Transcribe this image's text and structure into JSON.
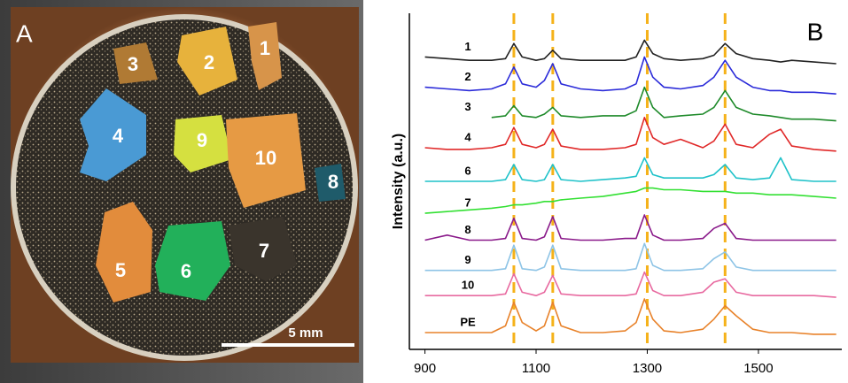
{
  "photo": {
    "panel_label": "A",
    "fragment_labels": [
      "1",
      "2",
      "3",
      "4",
      "9",
      "10",
      "8",
      "5",
      "6",
      "7"
    ],
    "scale_bar": "5 mm"
  },
  "chart_data": {
    "type": "line",
    "panel_label": "B",
    "y_label": "Intensity (a.u.)",
    "x": [
      900,
      940,
      980,
      1020,
      1045,
      1060,
      1075,
      1100,
      1115,
      1130,
      1145,
      1180,
      1220,
      1260,
      1280,
      1295,
      1310,
      1330,
      1360,
      1400,
      1420,
      1440,
      1460,
      1490,
      1520,
      1540,
      1560,
      1600,
      1640
    ],
    "xlim": [
      872,
      1650
    ],
    "ylim": [
      0,
      100
    ],
    "xticks": [
      900,
      1100,
      1300,
      1500
    ],
    "reference_lines": [
      1060,
      1130,
      1300,
      1440
    ],
    "reference_color": "#f5b21a",
    "series": [
      {
        "name": "1",
        "color": "#222222",
        "values": [
          87,
          86.5,
          86,
          86,
          86.5,
          91,
          87,
          86,
          86.5,
          89,
          86.5,
          86,
          86,
          86,
          87,
          92,
          88,
          86.5,
          86,
          86.5,
          87.5,
          91,
          88,
          86.5,
          86,
          85.5,
          86,
          85.5,
          85
        ]
      },
      {
        "name": "2",
        "color": "#2b2bd9",
        "values": [
          78,
          77.5,
          77,
          77.5,
          79,
          84,
          79,
          78,
          80,
          85,
          79,
          77.5,
          77,
          77.5,
          79,
          87,
          81,
          78,
          77.5,
          78.5,
          81,
          86,
          81,
          78,
          77,
          77,
          76.5,
          76.5,
          76
        ]
      },
      {
        "name": "3",
        "color": "#1e8a2a",
        "values": [
          null,
          null,
          null,
          69,
          69.5,
          72.5,
          69.5,
          69,
          70,
          72,
          69.5,
          69,
          69.5,
          69.5,
          71,
          78,
          72,
          69,
          69.5,
          70,
          72,
          77,
          72,
          70,
          69.5,
          69,
          68.5,
          68.5,
          68
        ]
      },
      {
        "name": "4",
        "color": "#e02828",
        "values": [
          60,
          59.5,
          59.5,
          60,
          61,
          66,
          61,
          60,
          61,
          65.5,
          60.5,
          59.5,
          59.5,
          60,
          61,
          69,
          63,
          61,
          62.5,
          60,
          62,
          67,
          61,
          60,
          64,
          65.5,
          60.5,
          59.5,
          59
        ]
      },
      {
        "name": "6",
        "color": "#1fc2c9",
        "values": [
          50,
          50,
          50,
          50,
          50.5,
          55,
          50.5,
          50,
          50.5,
          55,
          50.5,
          50,
          50.5,
          51,
          51.5,
          57,
          52,
          51,
          51,
          51,
          52,
          55,
          51,
          50.5,
          51,
          57,
          50.5,
          50,
          50
        ]
      },
      {
        "name": "7",
        "color": "#33e033",
        "values": [
          40.5,
          41,
          41.5,
          42,
          42.5,
          43,
          43,
          43.5,
          44,
          44,
          44.5,
          45,
          45.5,
          46.5,
          47,
          48,
          48,
          47.5,
          47.5,
          47,
          47,
          47,
          46.5,
          46.5,
          46,
          46,
          46,
          45.5,
          45
        ]
      },
      {
        "name": "8",
        "color": "#8a1a8a",
        "values": [
          32.5,
          34,
          32.5,
          32.5,
          33,
          39,
          33,
          32.5,
          33.5,
          39.5,
          33,
          32.5,
          32.5,
          33,
          33,
          40,
          34,
          32.5,
          32.5,
          33,
          36,
          37.5,
          33,
          32.5,
          32.5,
          32.5,
          32.5,
          32.5,
          32.5
        ]
      },
      {
        "name": "9",
        "color": "#8ec4e6",
        "values": [
          23.5,
          23.5,
          23.5,
          23.5,
          24,
          31,
          24,
          23.5,
          24.5,
          31,
          24,
          23.5,
          23.5,
          23.5,
          24,
          31.5,
          25,
          23.5,
          23.5,
          24,
          27,
          29,
          24.5,
          23.5,
          23.5,
          23.5,
          23.5,
          23.5,
          23.5
        ]
      },
      {
        "name": "10",
        "color": "#e86aa0",
        "values": [
          16,
          16,
          16,
          16,
          16.5,
          22.5,
          17,
          16,
          17,
          22,
          16.5,
          16,
          16,
          16,
          16.5,
          23,
          17.5,
          16,
          16,
          17,
          20,
          21,
          17,
          16,
          16,
          16,
          16,
          16,
          15.5
        ]
      },
      {
        "name": "PE",
        "color": "#e8822a",
        "values": [
          5,
          5,
          5,
          5,
          7,
          14,
          8,
          5.5,
          7,
          14,
          7,
          5,
          5,
          5.5,
          8,
          15,
          9,
          5.5,
          5,
          6,
          9,
          13,
          10,
          6,
          5,
          5,
          5,
          4.5,
          4.5
        ]
      }
    ]
  }
}
